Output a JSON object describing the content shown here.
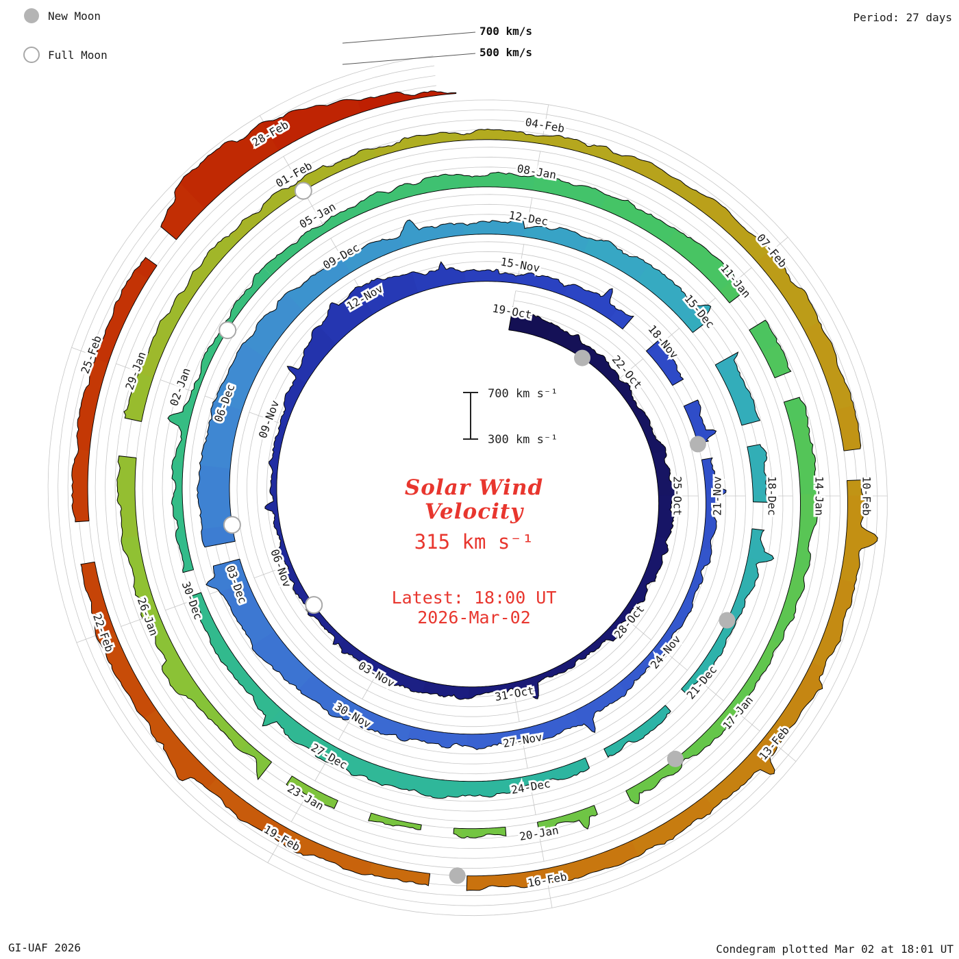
{
  "window": {
    "period_label": "Period: 27 days",
    "credit": "GI-UAF 2026",
    "plotted_label": "Condegram plotted Mar 02 at 18:01 UT"
  },
  "legend": {
    "new_moon": "New Moon",
    "full_moon": "Full Moon"
  },
  "ring_labels": {
    "outer": "700 km/s",
    "inner": "500 km/s"
  },
  "center": {
    "title_line1": "Solar Wind",
    "title_line2": "Velocity",
    "current_velocity": "315 km s⁻¹",
    "latest_line1": "Latest: 18:00 UT",
    "latest_line2": "2026-Mar-02",
    "scale_top": "700 km s⁻¹",
    "scale_bottom": "300 km s⁻¹"
  },
  "chart_data": {
    "type": "area",
    "subtype": "condegram-polar-spiral",
    "title": "Solar Wind Velocity",
    "unit": "km/s",
    "period_days": 27,
    "start_date": "2025-10-19",
    "latest_date": "2026-03-02",
    "latest_time_ut": "18:00",
    "latest_velocity_kms": 315,
    "velocity_axis": {
      "min": 300,
      "max": 700,
      "gridlines": [
        300,
        400,
        500,
        600,
        700
      ]
    },
    "tick_interval_days": 3,
    "date_tick_labels": [
      "19-Oct",
      "22-Oct",
      "25-Oct",
      "28-Oct",
      "31-Oct",
      "03-Nov",
      "06-Nov",
      "09-Nov",
      "12-Nov",
      "15-Nov",
      "18-Nov",
      "21-Nov",
      "24-Nov",
      "27-Nov",
      "30-Nov",
      "03-Dec",
      "06-Dec",
      "09-Dec",
      "12-Dec",
      "15-Dec",
      "18-Dec",
      "21-Dec",
      "24-Dec",
      "27-Dec",
      "30-Dec",
      "02-Jan",
      "05-Jan",
      "08-Jan",
      "11-Jan",
      "14-Jan",
      "17-Jan",
      "20-Jan",
      "23-Jan",
      "26-Jan",
      "29-Jan",
      "01-Feb",
      "04-Feb",
      "07-Feb",
      "10-Feb",
      "13-Feb",
      "16-Feb",
      "19-Feb",
      "22-Feb",
      "25-Feb",
      "28-Feb"
    ],
    "daily_velocity_kms": [
      520,
      480,
      430,
      400,
      390,
      420,
      450,
      430,
      400,
      380,
      370,
      360,
      380,
      400,
      420,
      410,
      390,
      370,
      360,
      350,
      360,
      380,
      420,
      560,
      620,
      500,
      430,
      400,
      420,
      450,
      460,
      440,
      420,
      400,
      390,
      380,
      400,
      420,
      440,
      430,
      420,
      440,
      480,
      520,
      560,
      590,
      610,
      600,
      580,
      560,
      520,
      470,
      430,
      410,
      400,
      480,
      500,
      510,
      490,
      460,
      440,
      420,
      400,
      390,
      380,
      400,
      420,
      450,
      470,
      460,
      440,
      420,
      400,
      390,
      380,
      370,
      380,
      390,
      400,
      420,
      430,
      440,
      460,
      480,
      500,
      490,
      470,
      450,
      430,
      410,
      400,
      390,
      380,
      370,
      360,
      370,
      380,
      400,
      420,
      440,
      460,
      470,
      460,
      440,
      420,
      400,
      390,
      380,
      380,
      420,
      450,
      470,
      480,
      470,
      460,
      450,
      460,
      470,
      460,
      450,
      440,
      430,
      440,
      450,
      460,
      470,
      460,
      450,
      440,
      430,
      450,
      560,
      620,
      420,
      315
    ],
    "data_gap_day_ranges": [
      [
        29.3,
        29.9
      ],
      [
        30.8,
        31.2
      ],
      [
        32.0,
        32.3
      ],
      [
        45.4,
        45.7
      ],
      [
        57.2,
        57.8
      ],
      [
        58.9,
        59.2
      ],
      [
        60.1,
        60.5
      ],
      [
        63.3,
        63.6
      ],
      [
        64.8,
        65.1
      ],
      [
        72.1,
        72.4
      ],
      [
        84.2,
        84.6
      ],
      [
        85.4,
        85.7
      ],
      [
        91.8,
        92.2
      ],
      [
        93.0,
        93.4
      ],
      [
        94.1,
        94.5
      ],
      [
        95.2,
        95.6
      ],
      [
        96.3,
        96.6
      ],
      [
        101.0,
        101.4
      ],
      [
        113.5,
        113.8
      ],
      [
        120.9,
        121.3
      ],
      [
        126.8,
        127.2
      ],
      [
        130.2,
        130.5
      ]
    ],
    "moon_markers": {
      "new_moon_days": [
        2,
        32,
        62,
        91,
        121
      ],
      "new_moon_dates": [
        "21-Oct",
        "20-Nov",
        "20-Dec",
        "18-Jan",
        "17-Feb"
      ],
      "full_moon_days": [
        17,
        46,
        76,
        105
      ],
      "full_moon_dates": [
        "05-Nov",
        "04-Dec",
        "03-Jan",
        "01-Feb"
      ]
    },
    "color_stops": [
      [
        0.0,
        "#141052"
      ],
      [
        0.09,
        "#1a1a78"
      ],
      [
        0.16,
        "#2230a8"
      ],
      [
        0.21,
        "#2b44c4"
      ],
      [
        0.3,
        "#3a64d2"
      ],
      [
        0.36,
        "#3f8ad2"
      ],
      [
        0.42,
        "#36aac2"
      ],
      [
        0.48,
        "#2cb4a4"
      ],
      [
        0.55,
        "#34bc86"
      ],
      [
        0.62,
        "#46c464"
      ],
      [
        0.68,
        "#68c648"
      ],
      [
        0.74,
        "#8ec234"
      ],
      [
        0.8,
        "#b2ac20"
      ],
      [
        0.85,
        "#c29314"
      ],
      [
        0.9,
        "#c9720e"
      ],
      [
        0.95,
        "#c63e06"
      ],
      [
        1.0,
        "#bd1c02"
      ]
    ],
    "text_color": "#1a1a1a",
    "accent_red": "#e8362e",
    "grid_color": "#c6c6c6"
  }
}
